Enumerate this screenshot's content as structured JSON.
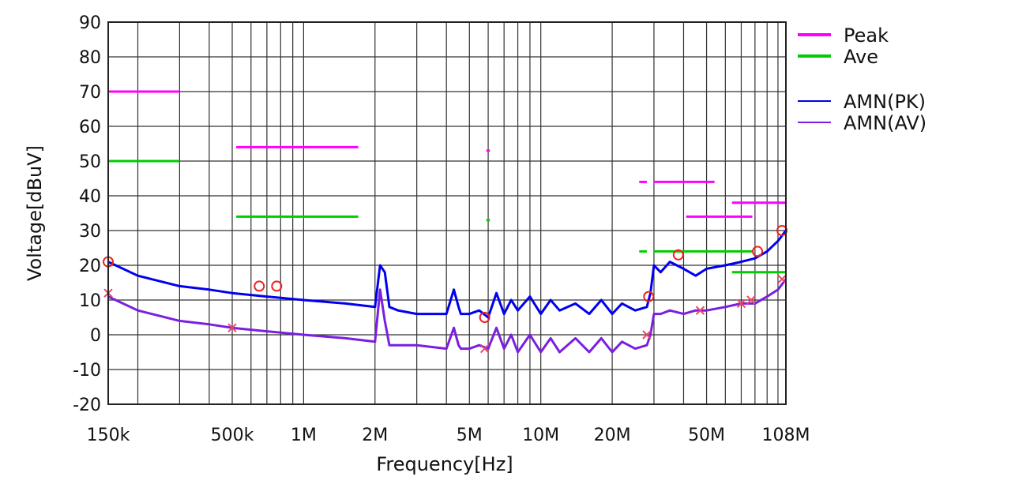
{
  "chart_data": {
    "type": "line",
    "xlabel": "Frequency[Hz]",
    "ylabel": "Voltage[dBuV]",
    "x_scale": "log",
    "xlim": [
      150000,
      108000000
    ],
    "ylim": [
      -20,
      90
    ],
    "grid": true,
    "legend_position": "right",
    "x_ticks": [
      {
        "value": 150000,
        "label": "150k"
      },
      {
        "value": 500000,
        "label": "500k"
      },
      {
        "value": 1000000,
        "label": "1M"
      },
      {
        "value": 2000000,
        "label": "2M"
      },
      {
        "value": 5000000,
        "label": "5M"
      },
      {
        "value": 10000000,
        "label": "10M"
      },
      {
        "value": 20000000,
        "label": "20M"
      },
      {
        "value": 50000000,
        "label": "50M"
      },
      {
        "value": 108000000,
        "label": "108M"
      }
    ],
    "y_ticks": [
      90,
      80,
      70,
      60,
      50,
      40,
      30,
      20,
      10,
      0,
      -10,
      -20
    ],
    "legend": [
      {
        "name": "Peak",
        "color": "#ff00ff"
      },
      {
        "name": "Ave",
        "color": "#00cc00"
      },
      {
        "name": "AMN(PK)",
        "color": "#0000ee"
      },
      {
        "name": "AMN(AV)",
        "color": "#7a1fe0"
      }
    ],
    "limits": {
      "peak": [
        {
          "x1": 150000,
          "x2": 300000,
          "y": 70
        },
        {
          "x1": 520000,
          "x2": 1700000,
          "y": 54
        },
        {
          "x1": 5900000,
          "x2": 6100000,
          "y": 53
        },
        {
          "x1": 26000000,
          "x2": 28000000,
          "y": 44
        },
        {
          "x1": 30000000,
          "x2": 54000000,
          "y": 44
        },
        {
          "x1": 41000000,
          "x2": 78000000,
          "y": 34
        },
        {
          "x1": 64000000,
          "x2": 108000000,
          "y": 38
        }
      ],
      "ave": [
        {
          "x1": 150000,
          "x2": 300000,
          "y": 50
        },
        {
          "x1": 520000,
          "x2": 1700000,
          "y": 34
        },
        {
          "x1": 5900000,
          "x2": 6100000,
          "y": 33
        },
        {
          "x1": 26000000,
          "x2": 28000000,
          "y": 24
        },
        {
          "x1": 30000000,
          "x2": 78000000,
          "y": 24
        },
        {
          "x1": 64000000,
          "x2": 108000000,
          "y": 18
        }
      ]
    },
    "series": [
      {
        "name": "AMN(PK)",
        "color": "#0000ee",
        "x": [
          150000,
          200000,
          300000,
          400000,
          500000,
          700000,
          1000000,
          1500000,
          2000000,
          2100000,
          2200000,
          2300000,
          2500000,
          3000000,
          4000000,
          4300000,
          4500000,
          4600000,
          5000000,
          5500000,
          6000000,
          6500000,
          7000000,
          7500000,
          8000000,
          9000000,
          10000000,
          11000000,
          12000000,
          14000000,
          16000000,
          18000000,
          20000000,
          22000000,
          25000000,
          28000000,
          29000000,
          30000000,
          32000000,
          35000000,
          40000000,
          45000000,
          50000000,
          60000000,
          70000000,
          80000000,
          90000000,
          100000000,
          108000000
        ],
        "y": [
          21,
          17,
          14,
          13,
          12,
          11,
          10,
          9,
          8,
          20,
          18,
          8,
          7,
          6,
          6,
          13,
          8,
          6,
          6,
          7,
          5,
          12,
          6,
          10,
          7,
          11,
          6,
          10,
          7,
          9,
          6,
          10,
          6,
          9,
          7,
          8,
          12,
          20,
          18,
          21,
          19,
          17,
          19,
          20,
          21,
          22,
          24,
          27,
          30
        ]
      },
      {
        "name": "AMN(AV)",
        "color": "#7a1fe0",
        "x": [
          150000,
          200000,
          300000,
          400000,
          500000,
          700000,
          1000000,
          1500000,
          2000000,
          2100000,
          2200000,
          2300000,
          2500000,
          3000000,
          4000000,
          4300000,
          4500000,
          4600000,
          5000000,
          5500000,
          6000000,
          6500000,
          7000000,
          7500000,
          8000000,
          9000000,
          10000000,
          11000000,
          12000000,
          14000000,
          16000000,
          18000000,
          20000000,
          22000000,
          25000000,
          28000000,
          29000000,
          30000000,
          32000000,
          35000000,
          40000000,
          45000000,
          50000000,
          60000000,
          70000000,
          80000000,
          90000000,
          100000000,
          108000000
        ],
        "y": [
          11,
          7,
          4,
          3,
          2,
          1,
          0,
          -1,
          -2,
          13,
          4,
          -3,
          -3,
          -3,
          -4,
          2,
          -3,
          -4,
          -4,
          -3,
          -4,
          2,
          -4,
          0,
          -5,
          0,
          -5,
          -1,
          -5,
          -1,
          -5,
          -1,
          -5,
          -2,
          -4,
          -3,
          0,
          6,
          6,
          7,
          6,
          7,
          7,
          8,
          9,
          9,
          11,
          13,
          16
        ]
      }
    ],
    "markers": {
      "pk_circles": [
        {
          "x": 150000,
          "y": 21
        },
        {
          "x": 650000,
          "y": 14
        },
        {
          "x": 770000,
          "y": 14
        },
        {
          "x": 5800000,
          "y": 5
        },
        {
          "x": 28500000,
          "y": 11
        },
        {
          "x": 38000000,
          "y": 23
        },
        {
          "x": 82000000,
          "y": 24
        },
        {
          "x": 104000000,
          "y": 30
        }
      ],
      "av_crosses": [
        {
          "x": 150000,
          "y": 12
        },
        {
          "x": 500000,
          "y": 2
        },
        {
          "x": 5800000,
          "y": -4
        },
        {
          "x": 28000000,
          "y": 0
        },
        {
          "x": 47000000,
          "y": 7
        },
        {
          "x": 70000000,
          "y": 9
        },
        {
          "x": 77000000,
          "y": 10
        },
        {
          "x": 104000000,
          "y": 16
        }
      ]
    }
  }
}
